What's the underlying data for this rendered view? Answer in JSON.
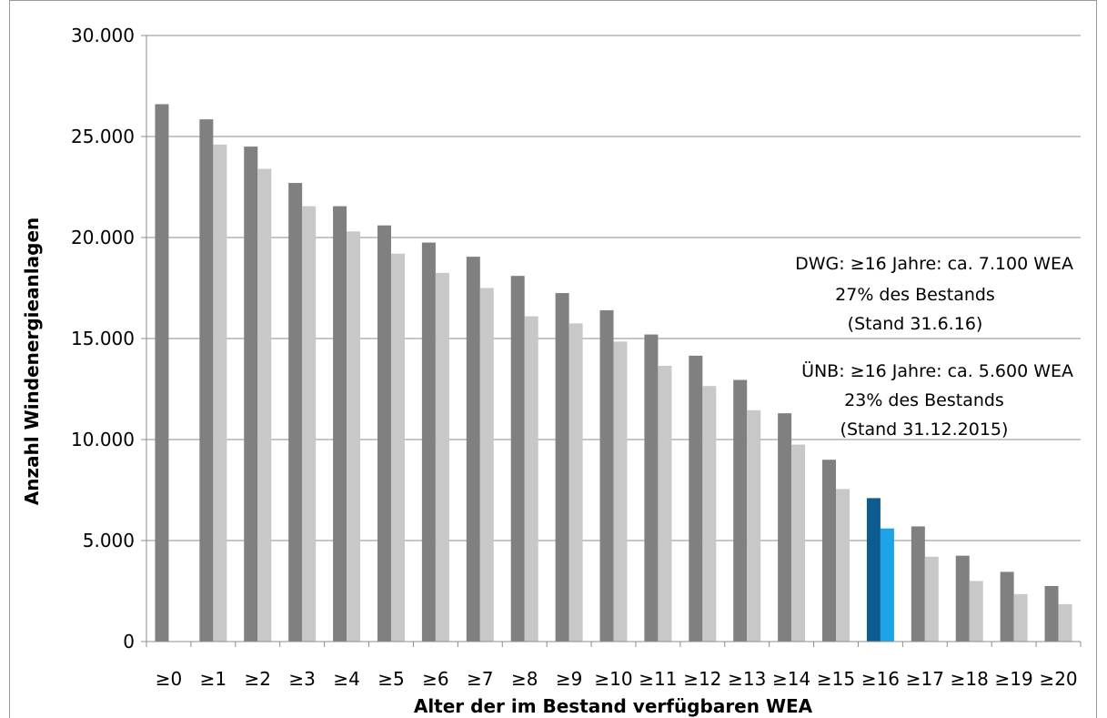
{
  "chart_data": {
    "type": "bar",
    "title": "",
    "xlabel": "Alter der im Bestand verfügbaren WEA",
    "ylabel": "Anzahl Windenergieanlagen",
    "ylim": [
      0,
      30000
    ],
    "yticks": [
      0,
      5000,
      10000,
      15000,
      20000,
      25000,
      30000
    ],
    "ytick_labels": [
      "0",
      "5.000",
      "10.000",
      "15.000",
      "20.000",
      "25.000",
      "30.000"
    ],
    "grid": true,
    "legend": "none",
    "categories": [
      "≥0",
      "≥1",
      "≥2",
      "≥3",
      "≥4",
      "≥5",
      "≥6",
      "≥7",
      "≥8",
      "≥9",
      "≥10",
      "≥11",
      "≥12",
      "≥13",
      "≥14",
      "≥15",
      "≥16",
      "≥17",
      "≥18",
      "≥19",
      "≥20"
    ],
    "series": [
      {
        "values": [
          26600,
          25850,
          24500,
          22700,
          21550,
          20600,
          19750,
          19050,
          18100,
          17250,
          16400,
          15200,
          14150,
          12950,
          11300,
          9000,
          7100,
          5700,
          4250,
          3450,
          2750
        ],
        "color": "#808080",
        "highlight": {
          "index": 16,
          "color": "#0d5b8f"
        }
      },
      {
        "values": [
          null,
          24600,
          23400,
          21550,
          20300,
          19200,
          18250,
          17500,
          16100,
          15750,
          14850,
          13650,
          12650,
          11450,
          9750,
          7550,
          5600,
          4200,
          3000,
          2350,
          1850
        ],
        "color": "#c8c8c8",
        "highlight": {
          "index": 16,
          "color": "#1ea3e6"
        }
      }
    ],
    "annotations": [
      {
        "lines": [
          "DWG: ≥16 Jahre: ca. 7.100 WEA",
          "27% des Bestands",
          "(Stand 31.6.16)"
        ]
      },
      {
        "lines": [
          "ÜNB: ≥16 Jahre: ca. 5.600 WEA",
          "23% des Bestands",
          "(Stand 31.12.2015)"
        ]
      }
    ]
  }
}
